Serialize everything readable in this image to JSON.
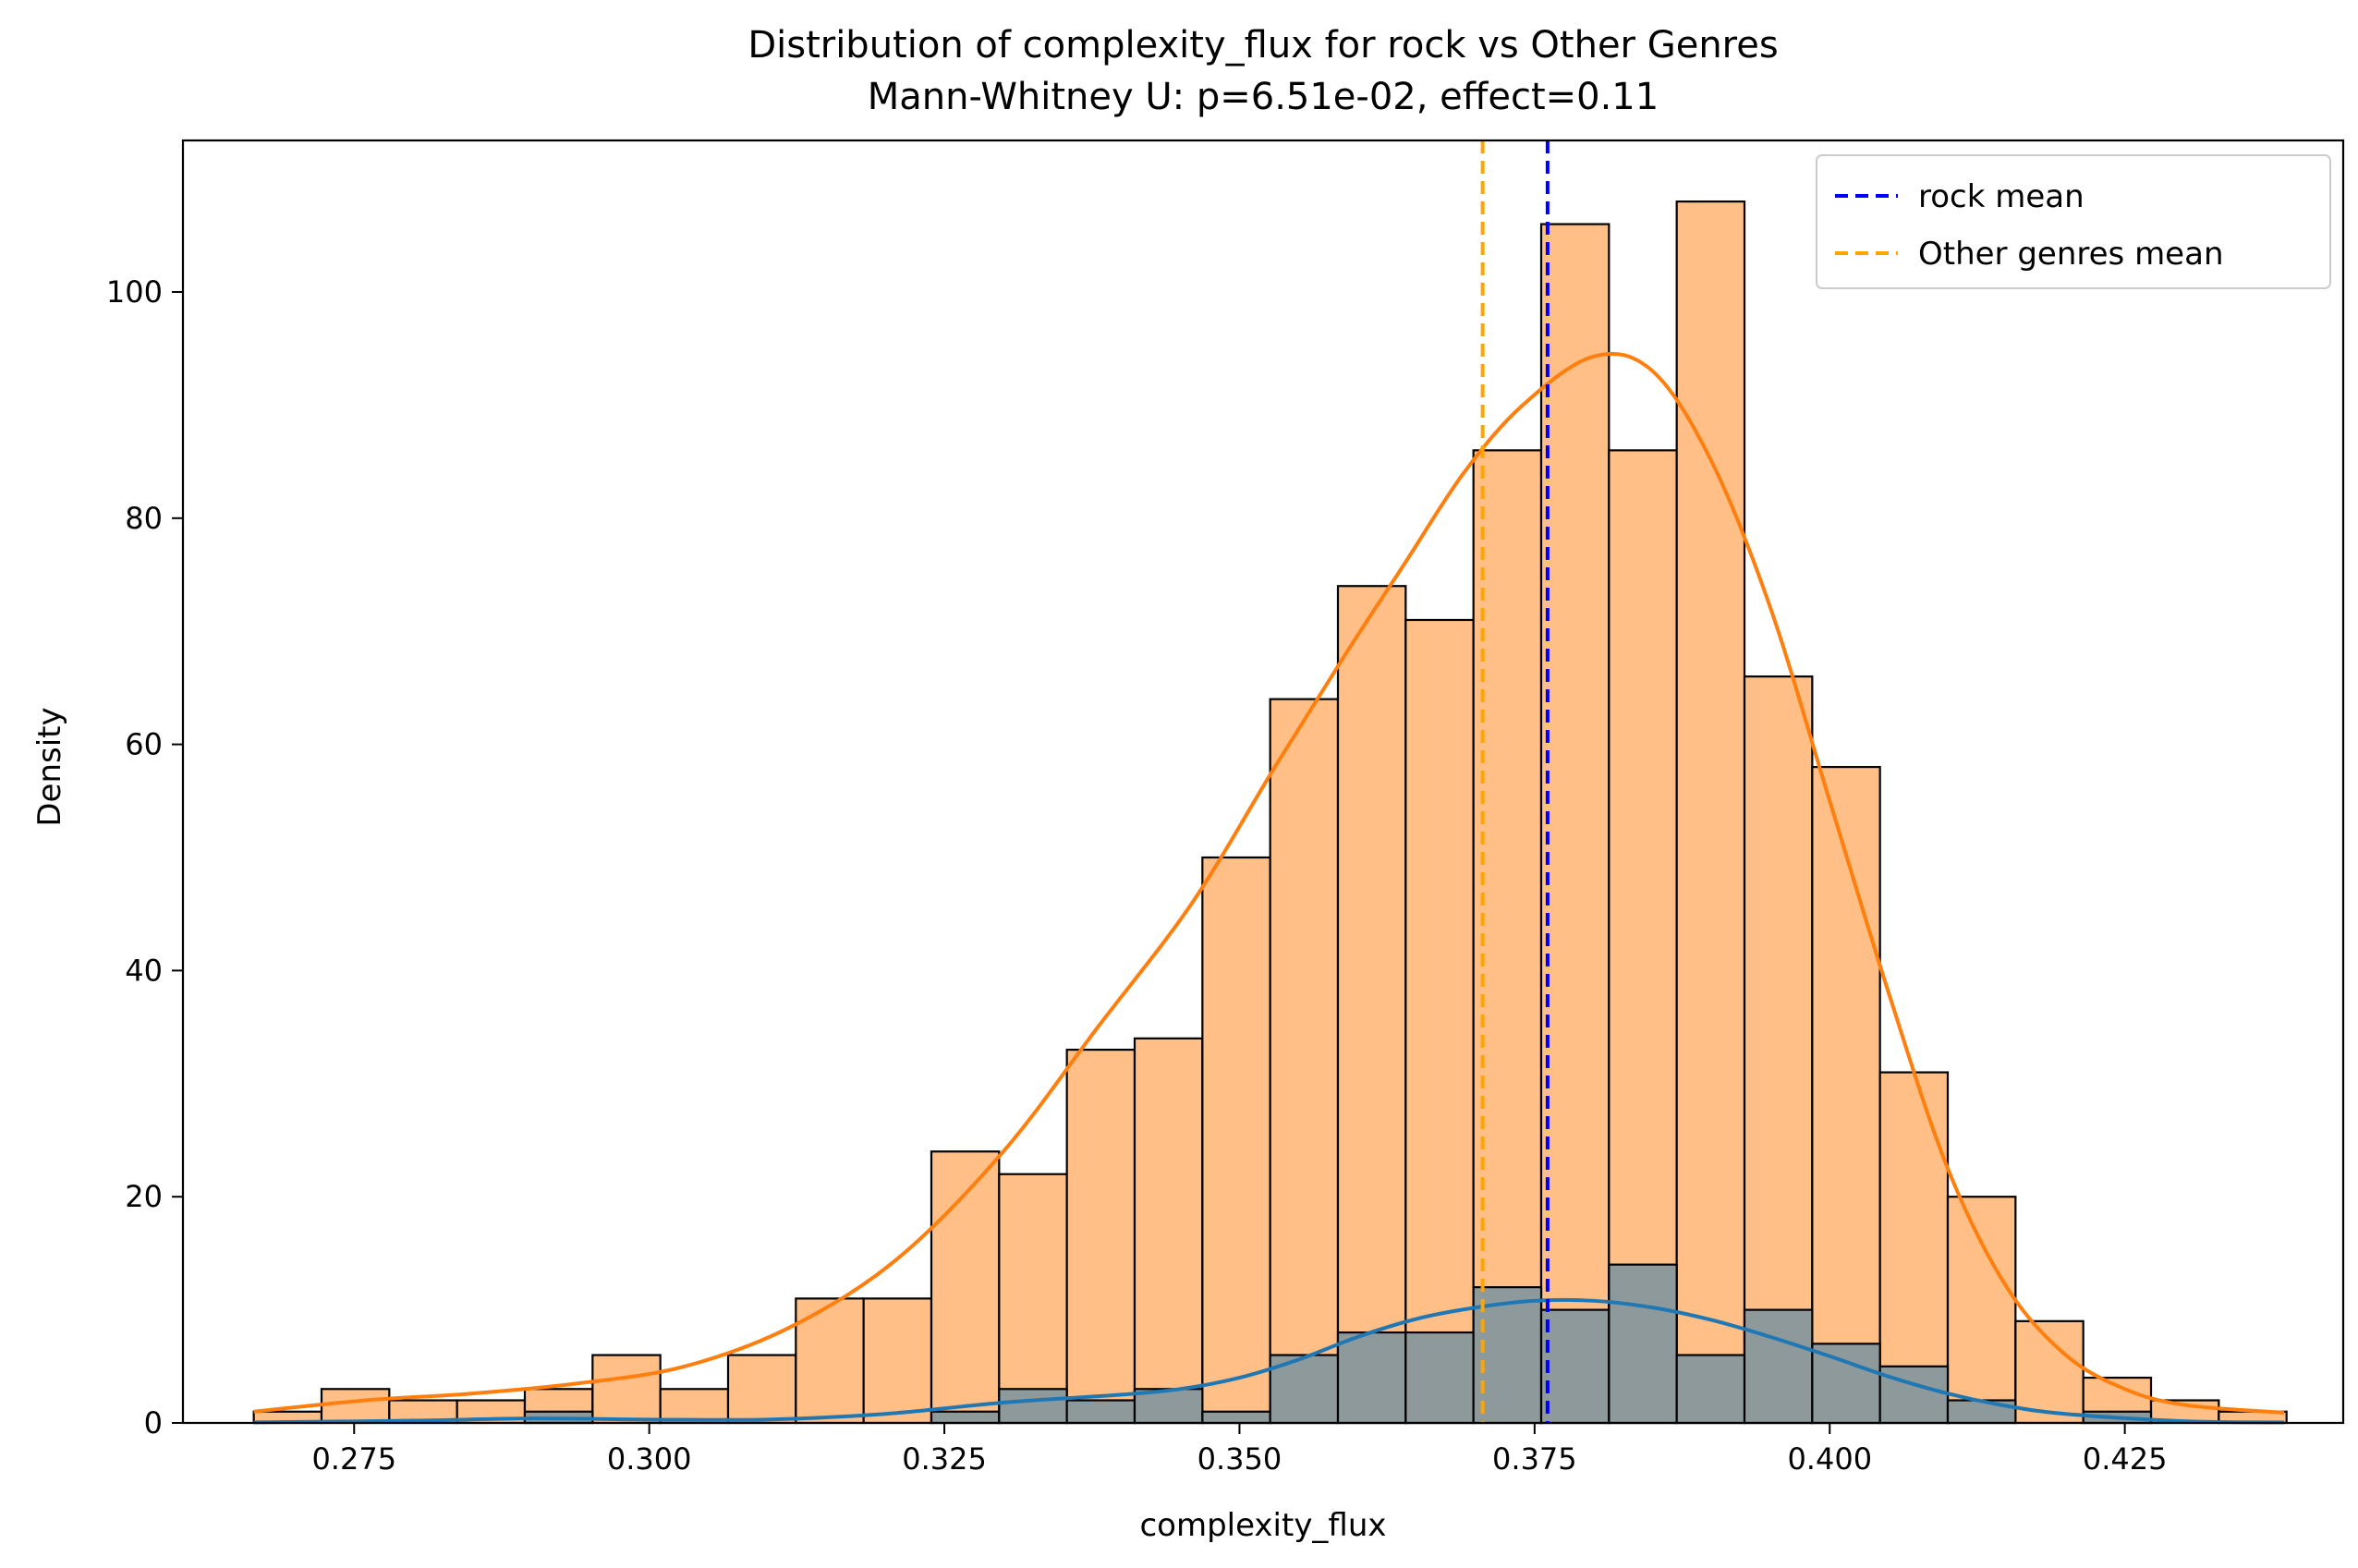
{
  "chart_data": {
    "type": "histogram",
    "title": "Distribution of complexity_flux for rock vs Other Genres",
    "subtitle": "Mann-Whitney U: p=6.51e-02, effect=0.11",
    "xlabel": "complexity_flux",
    "ylabel": "Density",
    "xlim": [
      0.2605,
      0.4435
    ],
    "ylim": [
      0,
      113.4
    ],
    "xticks": [
      "0.275",
      "0.300",
      "0.325",
      "0.350",
      "0.375",
      "0.400",
      "0.425"
    ],
    "xtick_values": [
      0.275,
      0.3,
      0.325,
      0.35,
      0.375,
      0.4,
      0.425
    ],
    "yticks": [
      "0",
      "20",
      "40",
      "60",
      "80",
      "100"
    ],
    "ytick_values": [
      0,
      20,
      40,
      60,
      80,
      100
    ],
    "grid": false,
    "legend_position": "top-right",
    "bin_start": 0.2665,
    "bin_width": 0.00574,
    "series": [
      {
        "name": "Other genres",
        "color": "#ff7f0e",
        "fill_color": "#ffbf86",
        "values": [
          1,
          3,
          2,
          2,
          3,
          6,
          3,
          6,
          11,
          11,
          24,
          22,
          33,
          34,
          50,
          64,
          74,
          71,
          86,
          106,
          86,
          108,
          66,
          58,
          31,
          20,
          9,
          4,
          2,
          1
        ]
      },
      {
        "name": "rock",
        "color": "#1f77b4",
        "fill_color": "#8e999b",
        "values": [
          0,
          0,
          0,
          0,
          1,
          0,
          0,
          0,
          0,
          0,
          1,
          3,
          2,
          3,
          1,
          6,
          8,
          8,
          12,
          10,
          14,
          6,
          10,
          7,
          5,
          2,
          0,
          1,
          0,
          0
        ]
      }
    ],
    "kde": [
      {
        "name": "Other genres",
        "color": "#ff7f0e",
        "x": [
          0.2665,
          0.276,
          0.285,
          0.294,
          0.303,
          0.312,
          0.321,
          0.33,
          0.338,
          0.346,
          0.353,
          0.359,
          0.364,
          0.369,
          0.374,
          0.38,
          0.385,
          0.39,
          0.395,
          0.4,
          0.405,
          0.41,
          0.415,
          0.42,
          0.425,
          0.43,
          0.4385
        ],
        "y": [
          1,
          2,
          2.6,
          3.5,
          5,
          8.5,
          14.5,
          24,
          35,
          46,
          58,
          68,
          76,
          84,
          90,
          94.3,
          93,
          85,
          72,
          55,
          38,
          22.5,
          12,
          6,
          3,
          1.6,
          0.9
        ]
      },
      {
        "name": "rock",
        "color": "#1f77b4",
        "x": [
          0.2665,
          0.28,
          0.29,
          0.3,
          0.31,
          0.32,
          0.33,
          0.34,
          0.345,
          0.35,
          0.355,
          0.36,
          0.365,
          0.37,
          0.375,
          0.38,
          0.385,
          0.39,
          0.395,
          0.4,
          0.405,
          0.41,
          0.415,
          0.42,
          0.43,
          0.4385
        ],
        "y": [
          0.05,
          0.2,
          0.4,
          0.3,
          0.3,
          0.8,
          1.8,
          2.5,
          3,
          4,
          5.6,
          7.6,
          9.2,
          10.2,
          10.8,
          10.8,
          10.2,
          9.1,
          7.6,
          5.9,
          4.1,
          2.6,
          1.5,
          0.8,
          0.15,
          0.05
        ]
      }
    ],
    "mean_lines": [
      {
        "name": "rock mean",
        "x": 0.3761,
        "color": "#0000ff"
      },
      {
        "name": "Other genres mean",
        "x": 0.3706,
        "color": "#ffa500"
      }
    ]
  }
}
